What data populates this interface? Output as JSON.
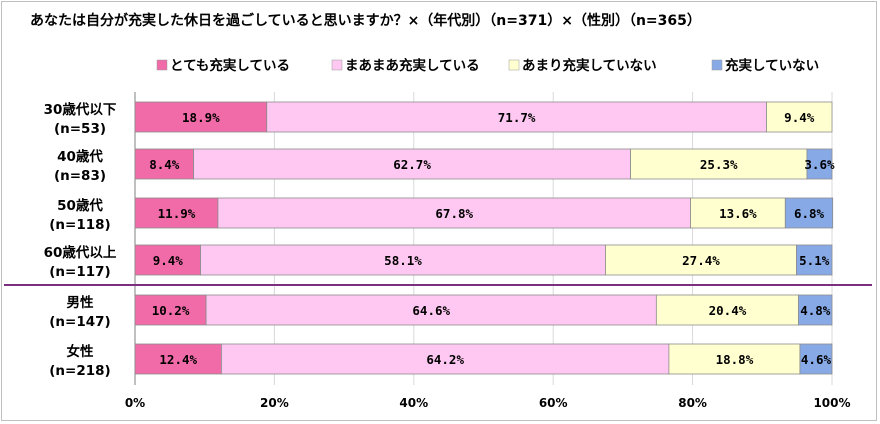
{
  "chart_data": {
    "type": "bar",
    "orientation": "horizontal",
    "stacked": true,
    "title": "あなたは自分が充実した休日を過ごしていると思いますか？×（年代別）（n=371）×（性別）（n=365）",
    "categories": [
      [
        "30歳代以下",
        "(n=53)"
      ],
      [
        "40歳代",
        "(n=83)"
      ],
      [
        "50歳代",
        "(n=118)"
      ],
      [
        "60歳代以上",
        "(n=117)"
      ],
      [
        "男性",
        "(n=147)"
      ],
      [
        "女性",
        "(n=218)"
      ]
    ],
    "series": [
      {
        "name": "とても充実している",
        "color": "#f06ba8",
        "values": [
          18.9,
          8.4,
          11.9,
          9.4,
          10.2,
          12.4
        ]
      },
      {
        "name": "まあまあ充実している",
        "color": "#ffc8f2",
        "values": [
          71.7,
          62.7,
          67.8,
          58.1,
          64.6,
          64.2
        ]
      },
      {
        "name": "あまり充実していない",
        "color": "#ffffd0",
        "values": [
          9.4,
          25.3,
          13.6,
          27.4,
          20.4,
          18.8
        ]
      },
      {
        "name": "充実していない",
        "color": "#87a9e6",
        "values": [
          null,
          3.6,
          6.8,
          5.1,
          4.8,
          4.6
        ]
      }
    ],
    "xlim": [
      0,
      100
    ],
    "xticks": [
      "0%",
      "20%",
      "40%",
      "60%",
      "80%",
      "100%"
    ],
    "value_suffix": "%",
    "legend_position": "top",
    "group_divider_after": 3,
    "divider_color": "#7b2f7e",
    "grid": true
  }
}
